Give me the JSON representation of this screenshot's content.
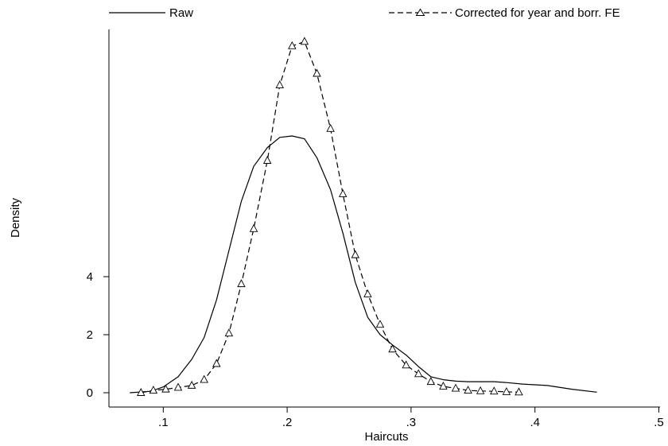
{
  "chart_data": {
    "type": "line",
    "title": "",
    "xlabel": "Haircuts",
    "ylabel": "Density",
    "xlim": [
      0.05,
      0.5
    ],
    "ylim": [
      -0.6,
      12.5
    ],
    "x_ticks": [
      0.1,
      0.2,
      0.3,
      0.4,
      0.5
    ],
    "x_tick_labels": [
      ".1",
      ".2",
      ".3",
      ".4",
      ".5"
    ],
    "y_ticks": [
      0,
      2,
      4
    ],
    "y_tick_labels": [
      "0",
      "2",
      "4"
    ],
    "grid": false,
    "legend_position": "top",
    "series": [
      {
        "name": "Raw",
        "style": "solid",
        "marker": "none",
        "color": "#000000",
        "x": [
          0.073,
          0.09,
          0.1,
          0.112,
          0.123,
          0.133,
          0.143,
          0.153,
          0.163,
          0.173,
          0.184,
          0.194,
          0.204,
          0.214,
          0.224,
          0.235,
          0.245,
          0.255,
          0.265,
          0.275,
          0.285,
          0.296,
          0.306,
          0.316,
          0.326,
          0.336,
          0.346,
          0.356,
          0.367,
          0.377,
          0.39,
          0.41,
          0.43,
          0.45
        ],
        "y": [
          0.0,
          0.05,
          0.2,
          0.55,
          1.15,
          1.9,
          3.2,
          4.9,
          6.6,
          7.8,
          8.45,
          8.8,
          8.85,
          8.75,
          8.1,
          7.0,
          5.5,
          3.8,
          2.6,
          2.0,
          1.65,
          1.3,
          0.9,
          0.55,
          0.45,
          0.4,
          0.38,
          0.38,
          0.38,
          0.35,
          0.3,
          0.25,
          0.12,
          0.02
        ]
      },
      {
        "name": "Corrected for year and borr. FE",
        "style": "dashed",
        "marker": "triangle",
        "color": "#000000",
        "x": [
          0.082,
          0.092,
          0.102,
          0.112,
          0.123,
          0.133,
          0.143,
          0.153,
          0.163,
          0.173,
          0.184,
          0.194,
          0.204,
          0.214,
          0.224,
          0.235,
          0.245,
          0.255,
          0.265,
          0.275,
          0.285,
          0.296,
          0.306,
          0.316,
          0.326,
          0.336,
          0.346,
          0.356,
          0.367,
          0.377,
          0.387
        ],
        "y": [
          0.0,
          0.08,
          0.12,
          0.18,
          0.25,
          0.45,
          1.0,
          2.05,
          3.75,
          5.65,
          8.0,
          10.6,
          11.95,
          12.1,
          11.0,
          9.1,
          6.85,
          4.75,
          3.4,
          2.35,
          1.5,
          0.95,
          0.65,
          0.38,
          0.22,
          0.15,
          0.08,
          0.06,
          0.05,
          0.03,
          0.02
        ]
      }
    ]
  }
}
